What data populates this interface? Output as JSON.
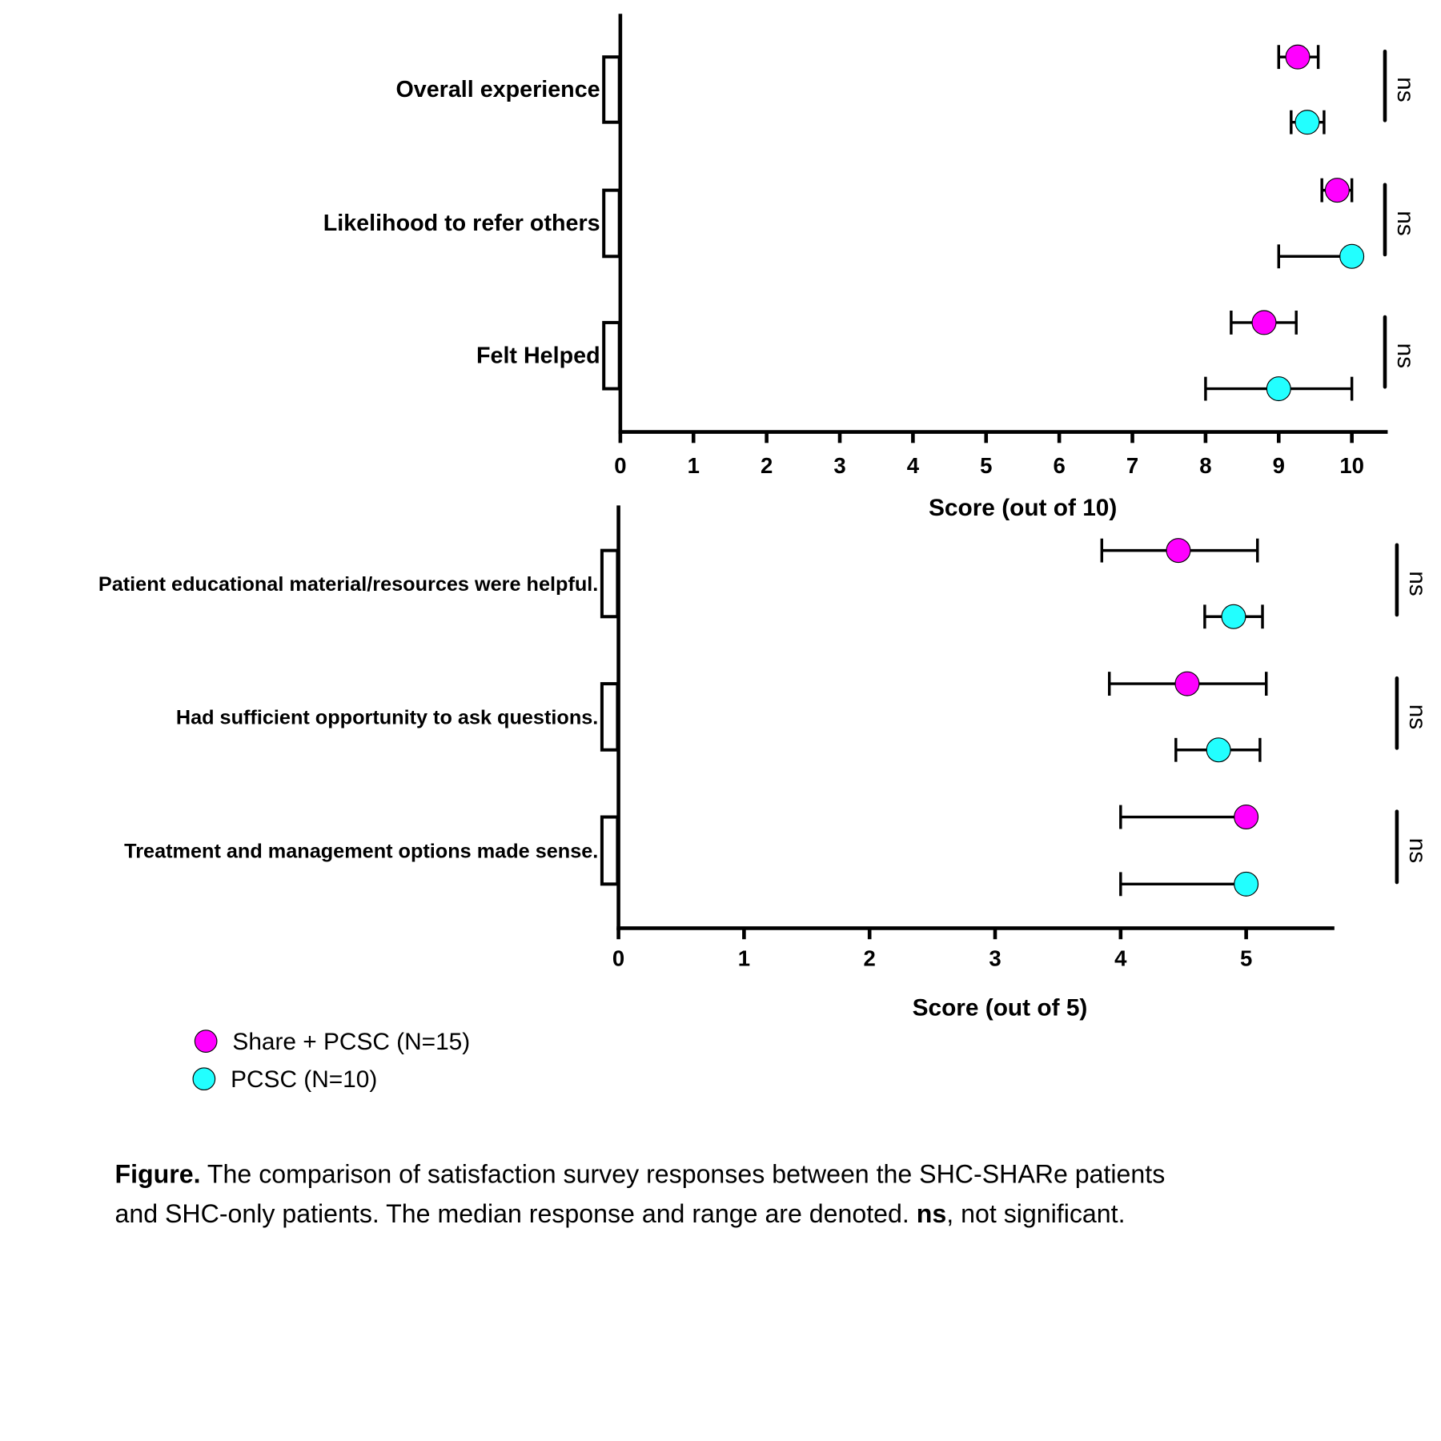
{
  "chart_data": [
    {
      "type": "scatter",
      "xlabel": "Score (out of 10)",
      "xlim": [
        0,
        10.5
      ],
      "xticks": [
        "0",
        "1",
        "2",
        "3",
        "4",
        "5",
        "6",
        "7",
        "8",
        "9",
        "10"
      ],
      "categories": [
        "Overall experience",
        "Likelihood to refer others",
        "Felt Helped"
      ],
      "series": [
        {
          "name": "Share + PCSC (N=15)",
          "color": "#ff00ff",
          "median": [
            9.26,
            9.8,
            8.8
          ],
          "low": [
            9.0,
            9.59,
            8.35
          ],
          "high": [
            9.54,
            10.0,
            9.24
          ]
        },
        {
          "name": "PCSC (N=10)",
          "color": "#22ffff",
          "median": [
            9.39,
            10.0,
            9.0
          ],
          "low": [
            9.17,
            9.0,
            8.0
          ],
          "high": [
            9.62,
            10.0,
            10.0
          ]
        }
      ],
      "significance": [
        "ns",
        "ns",
        "ns"
      ]
    },
    {
      "type": "scatter",
      "xlabel": "Score (out of 5)",
      "xlim": [
        0,
        5.7
      ],
      "xticks": [
        "0",
        "1",
        "2",
        "3",
        "4",
        "5"
      ],
      "categories": [
        "Patient educational material/resources were helpful.",
        "Had sufficient opportunity to ask questions.",
        "Treatment and management options made sense."
      ],
      "series": [
        {
          "name": "Share + PCSC (N=15)",
          "color": "#ff00ff",
          "median": [
            4.46,
            4.53,
            5.0
          ],
          "low": [
            3.85,
            3.91,
            4.0
          ],
          "high": [
            5.09,
            5.16,
            5.0
          ]
        },
        {
          "name": "PCSC (N=10)",
          "color": "#22ffff",
          "median": [
            4.9,
            4.78,
            5.0
          ],
          "low": [
            4.67,
            4.44,
            4.0
          ],
          "high": [
            5.13,
            5.11,
            5.0
          ]
        }
      ],
      "significance": [
        "ns",
        "ns",
        "ns"
      ]
    }
  ],
  "legend": [
    {
      "label": "Share + PCSC (N=15)",
      "color": "#ff00ff"
    },
    {
      "label": "PCSC (N=10)",
      "color": "#22ffff"
    }
  ],
  "caption": {
    "bold_prefix": "Figure.",
    "line1": " The comparison of satisfaction survey responses between the SHC-SHARe patients",
    "line2_start": "and SHC-only patients. The median response and range are denoted. ",
    "line2_bold": "ns",
    "line2_end": ", not significant."
  }
}
